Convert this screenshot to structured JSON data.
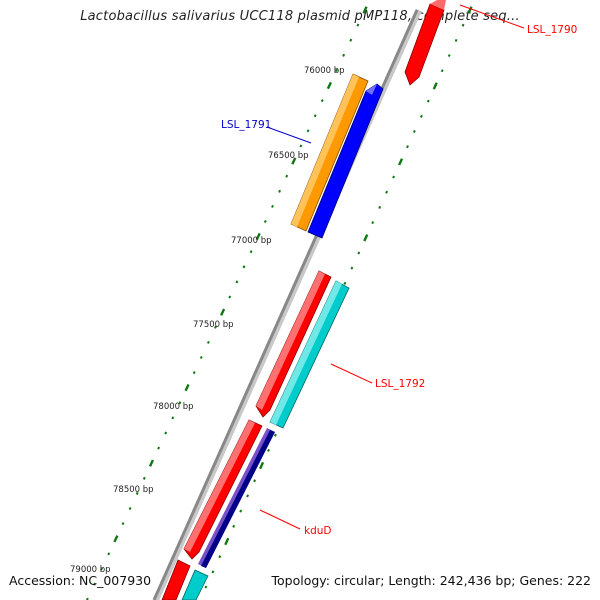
{
  "title": "Lactobacillus salivarius UCC118 plasmid pMP118, complete seq...",
  "footer": {
    "accession": "Accession: NC_007930",
    "summary": "Topology: circular; Length: 242,436 bp; Genes: 222"
  },
  "tick_labels": [
    "76000 bp",
    "76500 bp",
    "77000 bp",
    "77500 bp",
    "78000 bp",
    "78500 bp",
    "79000 bp"
  ],
  "genes": [
    {
      "name": "LSL_1790",
      "color": "#ff0000"
    },
    {
      "name": "LSL_1791",
      "color": "#0000cc"
    },
    {
      "name": "LSL_1792",
      "color": "#ff0000"
    },
    {
      "name": "kduD",
      "color": "#ff0000"
    }
  ],
  "colors": {
    "backbone": "#888888",
    "tick": "#117711",
    "feature_red": "#ff0000",
    "feature_orange": "#ff9900",
    "feature_blue": "#0000ff",
    "feature_cyan": "#00cccc",
    "feature_navy": "#000088",
    "feature_purple": "#7a50c8"
  }
}
